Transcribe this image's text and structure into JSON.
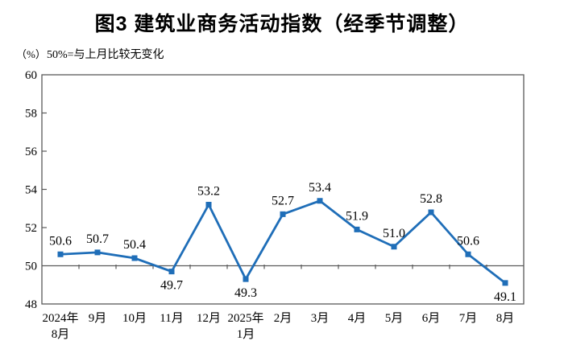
{
  "chart_data": {
    "type": "line",
    "title": "图3 建筑业商务活动指数（经季节调整）",
    "unit_label": "（%）",
    "note": "50%=与上月比较无变化",
    "categories": [
      "2024年\n8月",
      "9月",
      "10月",
      "11月",
      "12月",
      "2025年\n1月",
      "2月",
      "3月",
      "4月",
      "5月",
      "6月",
      "7月",
      "8月"
    ],
    "values": [
      50.6,
      50.7,
      50.4,
      49.7,
      53.2,
      49.3,
      52.7,
      53.4,
      51.9,
      51.0,
      52.8,
      50.6,
      49.1
    ],
    "value_labels": [
      "50.6",
      "50.7",
      "50.4",
      "49.7",
      "53.2",
      "49.3",
      "52.7",
      "53.4",
      "51.9",
      "51.0",
      "52.8",
      "50.6",
      "49.1"
    ],
    "labels_below_indices": [
      3,
      5,
      12
    ],
    "ylim": [
      48,
      60
    ],
    "ytick_step": 2,
    "reference_line": 50,
    "grid": "off",
    "legend": "none",
    "line_color": "#1F6EB8",
    "axis_color": "#595959",
    "text_color": "#000000"
  }
}
